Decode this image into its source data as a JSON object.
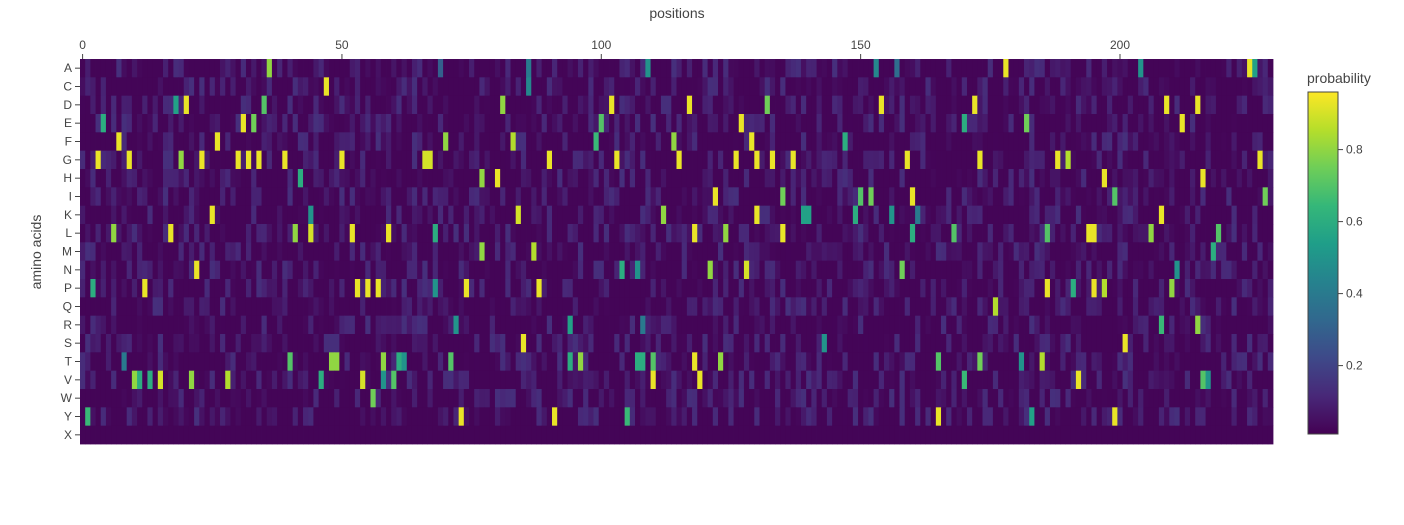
{
  "chart_data": {
    "type": "heatmap",
    "title": "",
    "xlabel": "positions",
    "ylabel": "amino acids",
    "x_range": [
      -0.5,
      229.5
    ],
    "x_ticks": [
      0,
      50,
      100,
      150,
      200
    ],
    "x_axis_side": "top",
    "rows": [
      "A",
      "C",
      "D",
      "E",
      "F",
      "G",
      "H",
      "I",
      "K",
      "L",
      "M",
      "N",
      "P",
      "Q",
      "R",
      "S",
      "T",
      "V",
      "W",
      "Y",
      "X"
    ],
    "colorbar": {
      "title": "probability",
      "range": [
        0.01,
        0.96
      ],
      "ticks": [
        0.2,
        0.4,
        0.6,
        0.8
      ],
      "colorscale": "Viridis"
    },
    "background_level": 0.02,
    "noise_level": 0.12,
    "highlights": [
      {
        "row": "A",
        "pos": 36,
        "value": 0.8
      },
      {
        "row": "A",
        "pos": 69,
        "value": 0.3
      },
      {
        "row": "A",
        "pos": 86,
        "value": 0.4
      },
      {
        "row": "A",
        "pos": 109,
        "value": 0.5
      },
      {
        "row": "A",
        "pos": 153,
        "value": 0.45
      },
      {
        "row": "A",
        "pos": 157,
        "value": 0.35
      },
      {
        "row": "A",
        "pos": 178,
        "value": 0.93
      },
      {
        "row": "A",
        "pos": 204,
        "value": 0.5
      },
      {
        "row": "A",
        "pos": 225,
        "value": 0.93
      },
      {
        "row": "A",
        "pos": 226,
        "value": 0.55
      },
      {
        "row": "C",
        "pos": 47,
        "value": 0.93
      },
      {
        "row": "C",
        "pos": 86,
        "value": 0.45
      },
      {
        "row": "D",
        "pos": 18,
        "value": 0.55
      },
      {
        "row": "D",
        "pos": 20,
        "value": 0.93
      },
      {
        "row": "D",
        "pos": 35,
        "value": 0.7
      },
      {
        "row": "D",
        "pos": 81,
        "value": 0.8
      },
      {
        "row": "D",
        "pos": 102,
        "value": 0.93
      },
      {
        "row": "D",
        "pos": 117,
        "value": 0.93
      },
      {
        "row": "D",
        "pos": 132,
        "value": 0.75
      },
      {
        "row": "D",
        "pos": 154,
        "value": 0.93
      },
      {
        "row": "D",
        "pos": 172,
        "value": 0.93
      },
      {
        "row": "D",
        "pos": 209,
        "value": 0.93
      },
      {
        "row": "D",
        "pos": 215,
        "value": 0.93
      },
      {
        "row": "E",
        "pos": 4,
        "value": 0.6
      },
      {
        "row": "E",
        "pos": 31,
        "value": 0.93
      },
      {
        "row": "E",
        "pos": 33,
        "value": 0.75
      },
      {
        "row": "E",
        "pos": 100,
        "value": 0.7
      },
      {
        "row": "E",
        "pos": 127,
        "value": 0.93
      },
      {
        "row": "E",
        "pos": 170,
        "value": 0.6
      },
      {
        "row": "E",
        "pos": 182,
        "value": 0.75
      },
      {
        "row": "E",
        "pos": 212,
        "value": 0.93
      },
      {
        "row": "F",
        "pos": 7,
        "value": 0.93
      },
      {
        "row": "F",
        "pos": 26,
        "value": 0.93
      },
      {
        "row": "F",
        "pos": 70,
        "value": 0.8
      },
      {
        "row": "F",
        "pos": 83,
        "value": 0.85
      },
      {
        "row": "F",
        "pos": 99,
        "value": 0.65
      },
      {
        "row": "F",
        "pos": 114,
        "value": 0.8
      },
      {
        "row": "F",
        "pos": 129,
        "value": 0.93
      },
      {
        "row": "F",
        "pos": 147,
        "value": 0.6
      },
      {
        "row": "G",
        "pos": 3,
        "value": 0.93
      },
      {
        "row": "G",
        "pos": 9,
        "value": 0.93
      },
      {
        "row": "G",
        "pos": 19,
        "value": 0.8
      },
      {
        "row": "G",
        "pos": 23,
        "value": 0.93
      },
      {
        "row": "G",
        "pos": 30,
        "value": 0.93
      },
      {
        "row": "G",
        "pos": 32,
        "value": 0.93
      },
      {
        "row": "G",
        "pos": 34,
        "value": 0.93
      },
      {
        "row": "G",
        "pos": 39,
        "value": 0.93
      },
      {
        "row": "G",
        "pos": 50,
        "value": 0.93
      },
      {
        "row": "G",
        "pos": 66,
        "value": 0.9
      },
      {
        "row": "G",
        "pos": 67,
        "value": 0.9
      },
      {
        "row": "G",
        "pos": 90,
        "value": 0.93
      },
      {
        "row": "G",
        "pos": 103,
        "value": 0.93
      },
      {
        "row": "G",
        "pos": 115,
        "value": 0.93
      },
      {
        "row": "G",
        "pos": 126,
        "value": 0.93
      },
      {
        "row": "G",
        "pos": 130,
        "value": 0.93
      },
      {
        "row": "G",
        "pos": 133,
        "value": 0.93
      },
      {
        "row": "G",
        "pos": 137,
        "value": 0.93
      },
      {
        "row": "G",
        "pos": 159,
        "value": 0.93
      },
      {
        "row": "G",
        "pos": 173,
        "value": 0.93
      },
      {
        "row": "G",
        "pos": 188,
        "value": 0.93
      },
      {
        "row": "G",
        "pos": 190,
        "value": 0.85
      },
      {
        "row": "G",
        "pos": 227,
        "value": 0.93
      },
      {
        "row": "H",
        "pos": 42,
        "value": 0.6
      },
      {
        "row": "H",
        "pos": 77,
        "value": 0.8
      },
      {
        "row": "H",
        "pos": 80,
        "value": 0.93
      },
      {
        "row": "H",
        "pos": 197,
        "value": 0.93
      },
      {
        "row": "H",
        "pos": 216,
        "value": 0.93
      },
      {
        "row": "I",
        "pos": 122,
        "value": 0.93
      },
      {
        "row": "I",
        "pos": 135,
        "value": 0.75
      },
      {
        "row": "I",
        "pos": 150,
        "value": 0.7
      },
      {
        "row": "I",
        "pos": 152,
        "value": 0.75
      },
      {
        "row": "I",
        "pos": 160,
        "value": 0.93
      },
      {
        "row": "I",
        "pos": 199,
        "value": 0.7
      },
      {
        "row": "I",
        "pos": 228,
        "value": 0.75
      },
      {
        "row": "K",
        "pos": 25,
        "value": 0.93
      },
      {
        "row": "K",
        "pos": 44,
        "value": 0.5
      },
      {
        "row": "K",
        "pos": 84,
        "value": 0.9
      },
      {
        "row": "K",
        "pos": 112,
        "value": 0.8
      },
      {
        "row": "K",
        "pos": 130,
        "value": 0.93
      },
      {
        "row": "K",
        "pos": 139,
        "value": 0.55
      },
      {
        "row": "K",
        "pos": 140,
        "value": 0.55
      },
      {
        "row": "K",
        "pos": 149,
        "value": 0.6
      },
      {
        "row": "K",
        "pos": 156,
        "value": 0.5
      },
      {
        "row": "K",
        "pos": 161,
        "value": 0.4
      },
      {
        "row": "K",
        "pos": 208,
        "value": 0.93
      },
      {
        "row": "L",
        "pos": 6,
        "value": 0.8
      },
      {
        "row": "L",
        "pos": 17,
        "value": 0.93
      },
      {
        "row": "L",
        "pos": 41,
        "value": 0.8
      },
      {
        "row": "L",
        "pos": 44,
        "value": 0.9
      },
      {
        "row": "L",
        "pos": 52,
        "value": 0.93
      },
      {
        "row": "L",
        "pos": 59,
        "value": 0.93
      },
      {
        "row": "L",
        "pos": 68,
        "value": 0.6
      },
      {
        "row": "L",
        "pos": 118,
        "value": 0.93
      },
      {
        "row": "L",
        "pos": 124,
        "value": 0.8
      },
      {
        "row": "L",
        "pos": 135,
        "value": 0.93
      },
      {
        "row": "L",
        "pos": 160,
        "value": 0.6
      },
      {
        "row": "L",
        "pos": 168,
        "value": 0.7
      },
      {
        "row": "L",
        "pos": 186,
        "value": 0.7
      },
      {
        "row": "L",
        "pos": 194,
        "value": 0.93
      },
      {
        "row": "L",
        "pos": 195,
        "value": 0.93
      },
      {
        "row": "L",
        "pos": 206,
        "value": 0.8
      },
      {
        "row": "L",
        "pos": 219,
        "value": 0.7
      },
      {
        "row": "M",
        "pos": 77,
        "value": 0.8
      },
      {
        "row": "M",
        "pos": 87,
        "value": 0.85
      },
      {
        "row": "M",
        "pos": 218,
        "value": 0.6
      },
      {
        "row": "N",
        "pos": 22,
        "value": 0.93
      },
      {
        "row": "N",
        "pos": 104,
        "value": 0.6
      },
      {
        "row": "N",
        "pos": 107,
        "value": 0.5
      },
      {
        "row": "N",
        "pos": 121,
        "value": 0.8
      },
      {
        "row": "N",
        "pos": 128,
        "value": 0.9
      },
      {
        "row": "N",
        "pos": 158,
        "value": 0.75
      },
      {
        "row": "N",
        "pos": 211,
        "value": 0.5
      },
      {
        "row": "P",
        "pos": 2,
        "value": 0.6
      },
      {
        "row": "P",
        "pos": 12,
        "value": 0.93
      },
      {
        "row": "P",
        "pos": 53,
        "value": 0.93
      },
      {
        "row": "P",
        "pos": 55,
        "value": 0.93
      },
      {
        "row": "P",
        "pos": 57,
        "value": 0.93
      },
      {
        "row": "P",
        "pos": 68,
        "value": 0.5
      },
      {
        "row": "P",
        "pos": 74,
        "value": 0.93
      },
      {
        "row": "P",
        "pos": 88,
        "value": 0.93
      },
      {
        "row": "P",
        "pos": 186,
        "value": 0.93
      },
      {
        "row": "P",
        "pos": 191,
        "value": 0.6
      },
      {
        "row": "P",
        "pos": 195,
        "value": 0.93
      },
      {
        "row": "P",
        "pos": 197,
        "value": 0.85
      },
      {
        "row": "P",
        "pos": 210,
        "value": 0.8
      },
      {
        "row": "Q",
        "pos": 176,
        "value": 0.85
      },
      {
        "row": "R",
        "pos": 72,
        "value": 0.5
      },
      {
        "row": "R",
        "pos": 94,
        "value": 0.55
      },
      {
        "row": "R",
        "pos": 108,
        "value": 0.4
      },
      {
        "row": "R",
        "pos": 208,
        "value": 0.65
      },
      {
        "row": "R",
        "pos": 215,
        "value": 0.8
      },
      {
        "row": "S",
        "pos": 85,
        "value": 0.93
      },
      {
        "row": "S",
        "pos": 143,
        "value": 0.5
      },
      {
        "row": "S",
        "pos": 201,
        "value": 0.93
      },
      {
        "row": "T",
        "pos": 8,
        "value": 0.4
      },
      {
        "row": "T",
        "pos": 40,
        "value": 0.7
      },
      {
        "row": "T",
        "pos": 48,
        "value": 0.8
      },
      {
        "row": "T",
        "pos": 49,
        "value": 0.8
      },
      {
        "row": "T",
        "pos": 58,
        "value": 0.8
      },
      {
        "row": "T",
        "pos": 61,
        "value": 0.6
      },
      {
        "row": "T",
        "pos": 62,
        "value": 0.5
      },
      {
        "row": "T",
        "pos": 71,
        "value": 0.7
      },
      {
        "row": "T",
        "pos": 94,
        "value": 0.6
      },
      {
        "row": "T",
        "pos": 96,
        "value": 0.8
      },
      {
        "row": "T",
        "pos": 107,
        "value": 0.6
      },
      {
        "row": "T",
        "pos": 108,
        "value": 0.6
      },
      {
        "row": "T",
        "pos": 110,
        "value": 0.7
      },
      {
        "row": "T",
        "pos": 118,
        "value": 0.93
      },
      {
        "row": "T",
        "pos": 123,
        "value": 0.8
      },
      {
        "row": "T",
        "pos": 165,
        "value": 0.7
      },
      {
        "row": "T",
        "pos": 173,
        "value": 0.75
      },
      {
        "row": "T",
        "pos": 181,
        "value": 0.5
      },
      {
        "row": "T",
        "pos": 185,
        "value": 0.85
      },
      {
        "row": "V",
        "pos": 10,
        "value": 0.8
      },
      {
        "row": "V",
        "pos": 11,
        "value": 0.6
      },
      {
        "row": "V",
        "pos": 13,
        "value": 0.6
      },
      {
        "row": "V",
        "pos": 15,
        "value": 0.9
      },
      {
        "row": "V",
        "pos": 21,
        "value": 0.8
      },
      {
        "row": "V",
        "pos": 28,
        "value": 0.85
      },
      {
        "row": "V",
        "pos": 46,
        "value": 0.6
      },
      {
        "row": "V",
        "pos": 54,
        "value": 0.9
      },
      {
        "row": "V",
        "pos": 58,
        "value": 0.5
      },
      {
        "row": "V",
        "pos": 60,
        "value": 0.7
      },
      {
        "row": "V",
        "pos": 110,
        "value": 0.93
      },
      {
        "row": "V",
        "pos": 119,
        "value": 0.93
      },
      {
        "row": "V",
        "pos": 170,
        "value": 0.65
      },
      {
        "row": "V",
        "pos": 192,
        "value": 0.93
      },
      {
        "row": "V",
        "pos": 216,
        "value": 0.7
      },
      {
        "row": "V",
        "pos": 217,
        "value": 0.5
      },
      {
        "row": "W",
        "pos": 56,
        "value": 0.75
      },
      {
        "row": "Y",
        "pos": 1,
        "value": 0.65
      },
      {
        "row": "Y",
        "pos": 73,
        "value": 0.93
      },
      {
        "row": "Y",
        "pos": 91,
        "value": 0.93
      },
      {
        "row": "Y",
        "pos": 105,
        "value": 0.65
      },
      {
        "row": "Y",
        "pos": 165,
        "value": 0.93
      },
      {
        "row": "Y",
        "pos": 183,
        "value": 0.55
      },
      {
        "row": "Y",
        "pos": 199,
        "value": 0.93
      }
    ]
  }
}
